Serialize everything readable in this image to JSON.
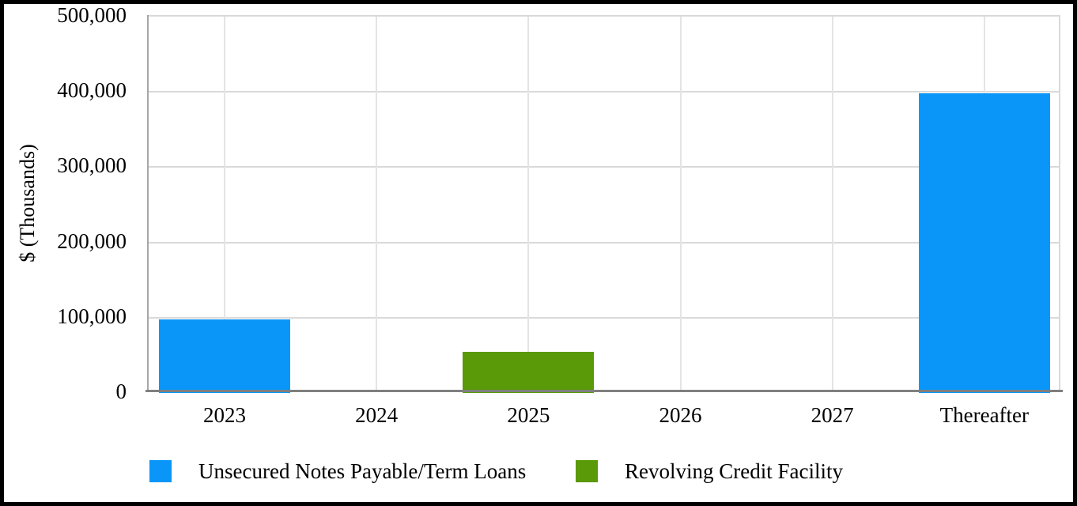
{
  "chart_data": {
    "type": "bar",
    "title": "",
    "xlabel": "",
    "ylabel": "$ (Thousands)",
    "categories": [
      "2023",
      "2024",
      "2025",
      "2026",
      "2027",
      "Thereafter"
    ],
    "series": [
      {
        "name": "Unsecured Notes Payable/Term Loans",
        "color": "#0996f8",
        "values": [
          98000,
          0,
          0,
          0,
          0,
          398000
        ]
      },
      {
        "name": "Revolving Credit Facility",
        "color": "#5a9908",
        "values": [
          0,
          0,
          55000,
          0,
          0,
          0
        ]
      }
    ],
    "ylim": [
      0,
      500000
    ],
    "ytick_step": 100000,
    "ytick_labels": [
      "0",
      "100,000",
      "200,000",
      "300,000",
      "400,000",
      "500,000"
    ],
    "grid": true,
    "gridline_color": "#d9d9d9",
    "legend_position": "bottom"
  },
  "legend": {
    "items": [
      {
        "label": "Unsecured Notes Payable/Term Loans",
        "color": "#0996f8"
      },
      {
        "label": "Revolving Credit Facility",
        "color": "#5a9908"
      }
    ]
  },
  "colors": {
    "frame": "#000000",
    "x_axis_line": "#7f7f7f",
    "y_axis_line": "#a6a6a6",
    "background": "#ffffff"
  }
}
